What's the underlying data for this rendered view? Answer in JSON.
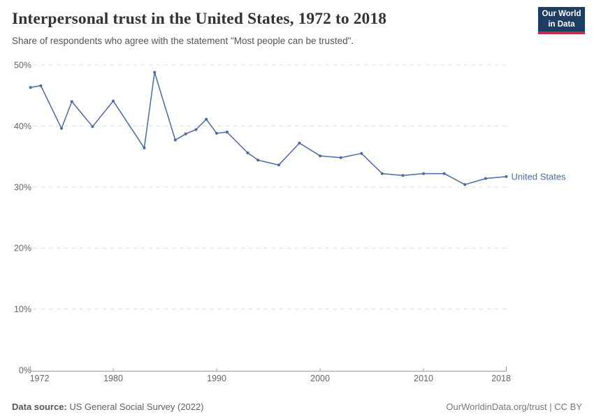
{
  "header": {
    "title": "Interpersonal trust in the United States, 1972 to 2018",
    "subtitle": "Share of respondents who agree with the statement \"Most people can be trusted\".",
    "logo": {
      "line1": "Our World",
      "line2": "in Data"
    }
  },
  "chart_data": {
    "type": "line",
    "title": "Interpersonal trust in the United States, 1972 to 2018",
    "xlabel": "",
    "ylabel": "",
    "xlim": [
      1972,
      2018
    ],
    "ylim": [
      0,
      50
    ],
    "x_ticks": [
      1972,
      1980,
      1990,
      2000,
      2010,
      2018
    ],
    "y_ticks": [
      0,
      10,
      20,
      30,
      40,
      50
    ],
    "y_tick_suffix": "%",
    "grid": "horizontal-dashed",
    "legend_position": "end-of-line",
    "series": [
      {
        "name": "United States",
        "color": "#4a69a4",
        "points": [
          [
            1972,
            46.3
          ],
          [
            1973,
            46.6
          ],
          [
            1975,
            39.6
          ],
          [
            1976,
            44.0
          ],
          [
            1978,
            39.9
          ],
          [
            1980,
            44.1
          ],
          [
            1983,
            36.4
          ],
          [
            1984,
            48.8
          ],
          [
            1986,
            37.7
          ],
          [
            1987,
            38.7
          ],
          [
            1988,
            39.4
          ],
          [
            1989,
            41.1
          ],
          [
            1990,
            38.8
          ],
          [
            1991,
            39.0
          ],
          [
            1993,
            35.6
          ],
          [
            1994,
            34.4
          ],
          [
            1996,
            33.6
          ],
          [
            1998,
            37.2
          ],
          [
            2000,
            35.1
          ],
          [
            2002,
            34.8
          ],
          [
            2004,
            35.5
          ],
          [
            2006,
            32.2
          ],
          [
            2008,
            31.9
          ],
          [
            2010,
            32.2
          ],
          [
            2012,
            32.2
          ],
          [
            2014,
            30.4
          ],
          [
            2016,
            31.4
          ],
          [
            2018,
            31.7
          ]
        ]
      }
    ]
  },
  "footer": {
    "source_label": "Data source:",
    "source_text": " US General Social Survey (2022)",
    "right_text": "OurWorldinData.org/trust | CC BY"
  },
  "colors": {
    "line": "#4a69a4",
    "gridline": "#dcdcdc",
    "axis": "#999999",
    "tick_text": "#666666",
    "logo_bg": "#1d3d63",
    "logo_stripe": "#bf3041"
  }
}
